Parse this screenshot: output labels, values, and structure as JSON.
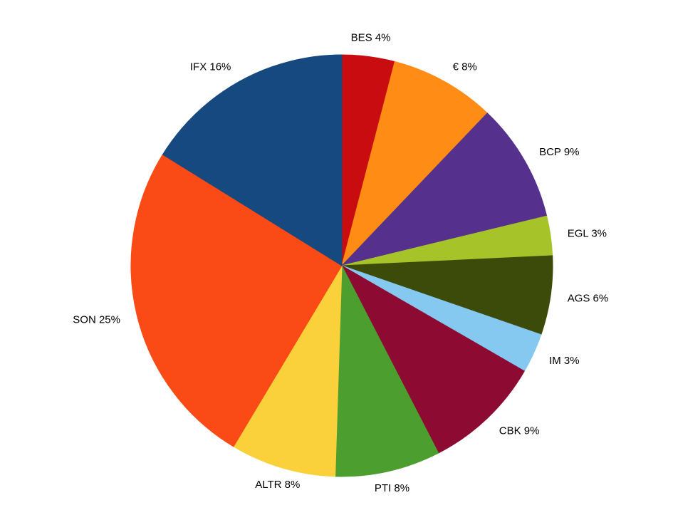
{
  "page": {
    "background_color": "#FFFFFF",
    "text_color": "#000000"
  },
  "chart_data": {
    "type": "pie",
    "title": "",
    "legend": "none",
    "labels_position": "outside",
    "start_angle": "12 o'clock",
    "direction": "clockwise",
    "unit": "%",
    "categories": [
      "BES",
      "€",
      "BCP",
      "EGL",
      "AGS",
      "IM",
      "CBK",
      "PTI",
      "ALTR",
      "SON",
      "IFX"
    ],
    "values": [
      4,
      8,
      9,
      3,
      6,
      3,
      9,
      8,
      8,
      25,
      16
    ],
    "labels": [
      "BES 4%",
      "€ 8%",
      "BCP 9%",
      "EGL 3%",
      "AGS 6%",
      "IM 3%",
      "CBK 9%",
      "PTI 8%",
      "ALTR 8%",
      "SON 25%",
      "IFX 16%"
    ],
    "colors": [
      "#C90C0F",
      "#FF8C15",
      "#55308C",
      "#A6C42A",
      "#3D4B0A",
      "#85C8F0",
      "#8D0B33",
      "#4C9F2F",
      "#FBD13B",
      "#FA4B16",
      "#16497F"
    ]
  }
}
